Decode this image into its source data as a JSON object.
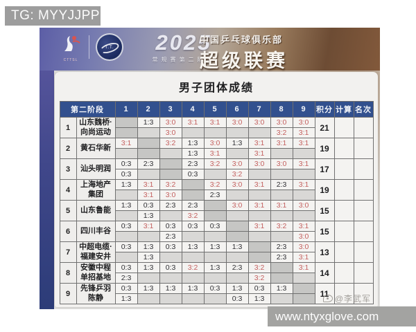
{
  "overlays": {
    "tg_badge": "TG: MYYJJPP",
    "website": "www.ntyxglove.com",
    "weibo_watermark": "@李武军"
  },
  "banner": {
    "left_logo_caption": "CTTSL",
    "round_logo_text": "T.T.",
    "year": "2025",
    "stage": "常规赛第二阶段",
    "league_line1": "中国乒乓球俱乐部",
    "league_line2": "超级联赛"
  },
  "page_title": "男子团体成绩",
  "table": {
    "stage_header": "第二阶段",
    "round_headers": [
      "1",
      "2",
      "3",
      "4",
      "5",
      "6",
      "7",
      "8",
      "9"
    ],
    "points_header": "积分",
    "calc_header": "计算",
    "rank_header": "名次",
    "accent_colors": {
      "header_bg": "#32508e",
      "win_text": "#c4605f",
      "loss_text": "#2f2f33"
    },
    "teams": [
      {
        "rank": "1",
        "name": "山东魏桥·向尚运动",
        "row1": [
          "",
          "1:3",
          "3:0",
          "3:1",
          "3:1",
          "3:0",
          "3:0",
          "3:0",
          "3:0"
        ],
        "row2": [
          "",
          "",
          "3:0",
          "",
          "",
          "",
          "",
          "3:2",
          "3:1"
        ],
        "points": "21",
        "calc": "",
        "final_rank": ""
      },
      {
        "rank": "2",
        "name": "黄石华新",
        "row1": [
          "3:1",
          "",
          "3:2",
          "1:3",
          "3:0",
          "1:3",
          "3:1",
          "3:1",
          "3:1"
        ],
        "row2": [
          "",
          "",
          "",
          "1:3",
          "3:1",
          "",
          "3:1",
          "",
          ""
        ],
        "points": "19",
        "calc": "",
        "final_rank": ""
      },
      {
        "rank": "3",
        "name": "汕头明润",
        "row1": [
          "0:3",
          "2:3",
          "",
          "2:3",
          "3:2",
          "3:0",
          "3:0",
          "3:0",
          "3:1"
        ],
        "row2": [
          "0:3",
          "",
          "",
          "0:3",
          "",
          "3:2",
          "",
          "",
          ""
        ],
        "points": "17",
        "calc": "",
        "final_rank": ""
      },
      {
        "rank": "4",
        "name": "上海地产集团",
        "row1": [
          "1:3",
          "3:1",
          "3:2",
          "",
          "3:2",
          "3:0",
          "3:1",
          "2:3",
          "3:1"
        ],
        "row2": [
          "",
          "3:1",
          "3:0",
          "",
          "2:3",
          "",
          "",
          "",
          ""
        ],
        "points": "19",
        "calc": "",
        "final_rank": ""
      },
      {
        "rank": "5",
        "name": "山东鲁能",
        "row1": [
          "1:3",
          "0:3",
          "2:3",
          "2:3",
          "",
          "3:0",
          "3:1",
          "3:1",
          "3:0"
        ],
        "row2": [
          "",
          "1:3",
          "",
          "3:2",
          "",
          "",
          "",
          "",
          ""
        ],
        "points": "15",
        "calc": "",
        "final_rank": ""
      },
      {
        "rank": "6",
        "name": "四川丰谷",
        "row1": [
          "0:3",
          "3:1",
          "0:3",
          "0:3",
          "0:3",
          "",
          "3:1",
          "3:2",
          "3:1"
        ],
        "row2": [
          "",
          "",
          "2:3",
          "",
          "",
          "",
          "",
          "",
          "3:0"
        ],
        "points": "15",
        "calc": "",
        "final_rank": ""
      },
      {
        "rank": "7",
        "name": "中超电缆·福建安井",
        "row1": [
          "0:3",
          "1:3",
          "0:3",
          "1:3",
          "1:3",
          "1:3",
          "",
          "2:3",
          "3:0"
        ],
        "row2": [
          "",
          "1:3",
          "",
          "",
          "",
          "",
          "",
          "2:3",
          "3:1"
        ],
        "points": "13",
        "calc": "",
        "final_rank": ""
      },
      {
        "rank": "8",
        "name": "安徽中程单招基地",
        "row1": [
          "0:3",
          "1:3",
          "0:3",
          "3:2",
          "1:3",
          "2:3",
          "3:2",
          "",
          "3:1"
        ],
        "row2": [
          "2:3",
          "",
          "",
          "",
          "",
          "",
          "3:2",
          "",
          ""
        ],
        "points": "14",
        "calc": "",
        "final_rank": ""
      },
      {
        "rank": "9",
        "name": "先锋乒羽陈静",
        "row1": [
          "0:3",
          "1:3",
          "1:3",
          "1:3",
          "0:3",
          "1:3",
          "0:3",
          "1:3",
          ""
        ],
        "row2": [
          "1:3",
          "",
          "",
          "",
          "",
          "0:3",
          "1:3",
          "",
          ""
        ],
        "points": "11",
        "calc": "",
        "final_rank": ""
      }
    ]
  }
}
